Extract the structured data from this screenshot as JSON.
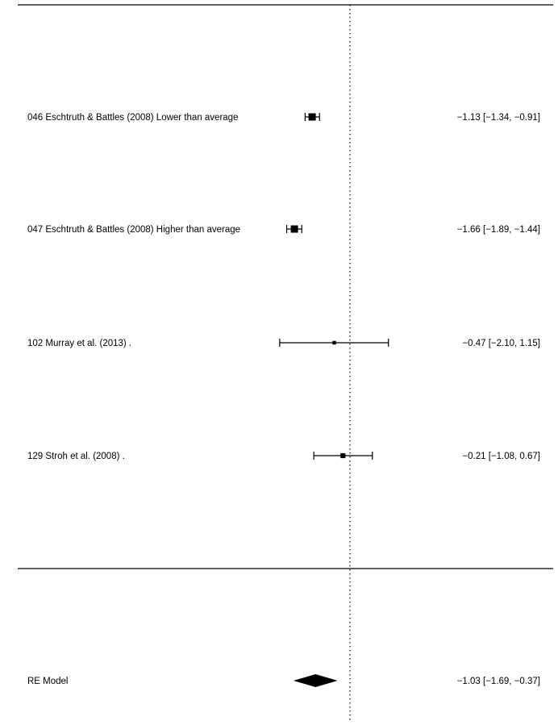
{
  "chart_data": {
    "type": "forest",
    "title": "",
    "xlabel": "",
    "ylabel": "",
    "reference_line": 0,
    "xlim": [
      -5.08,
      5.12
    ],
    "studies": [
      {
        "label": "046 Eschtruth & Battles (2008) Lower than average",
        "estimate": -1.13,
        "ci_low": -1.34,
        "ci_high": -0.91,
        "text": "−1.13 [−1.34, −0.91]",
        "weight": 1.0
      },
      {
        "label": "047 Eschtruth & Battles (2008) Higher than average",
        "estimate": -1.66,
        "ci_low": -1.89,
        "ci_high": -1.44,
        "text": "−1.66 [−1.89, −1.44]",
        "weight": 1.0
      },
      {
        "label": "102 Murray et al. (2013) .",
        "estimate": -0.47,
        "ci_low": -2.1,
        "ci_high": 1.15,
        "text": "−0.47 [−2.10,  1.15]",
        "weight": 0.12
      },
      {
        "label": "129 Stroh et al. (2008) .",
        "estimate": -0.21,
        "ci_low": -1.08,
        "ci_high": 0.67,
        "text": "−0.21 [−1.08,  0.67]",
        "weight": 0.35
      }
    ],
    "summary": {
      "label": "RE Model",
      "estimate": -1.03,
      "ci_low": -1.69,
      "ci_high": -0.37,
      "text": "−1.03 [−1.69, −0.37]"
    }
  }
}
